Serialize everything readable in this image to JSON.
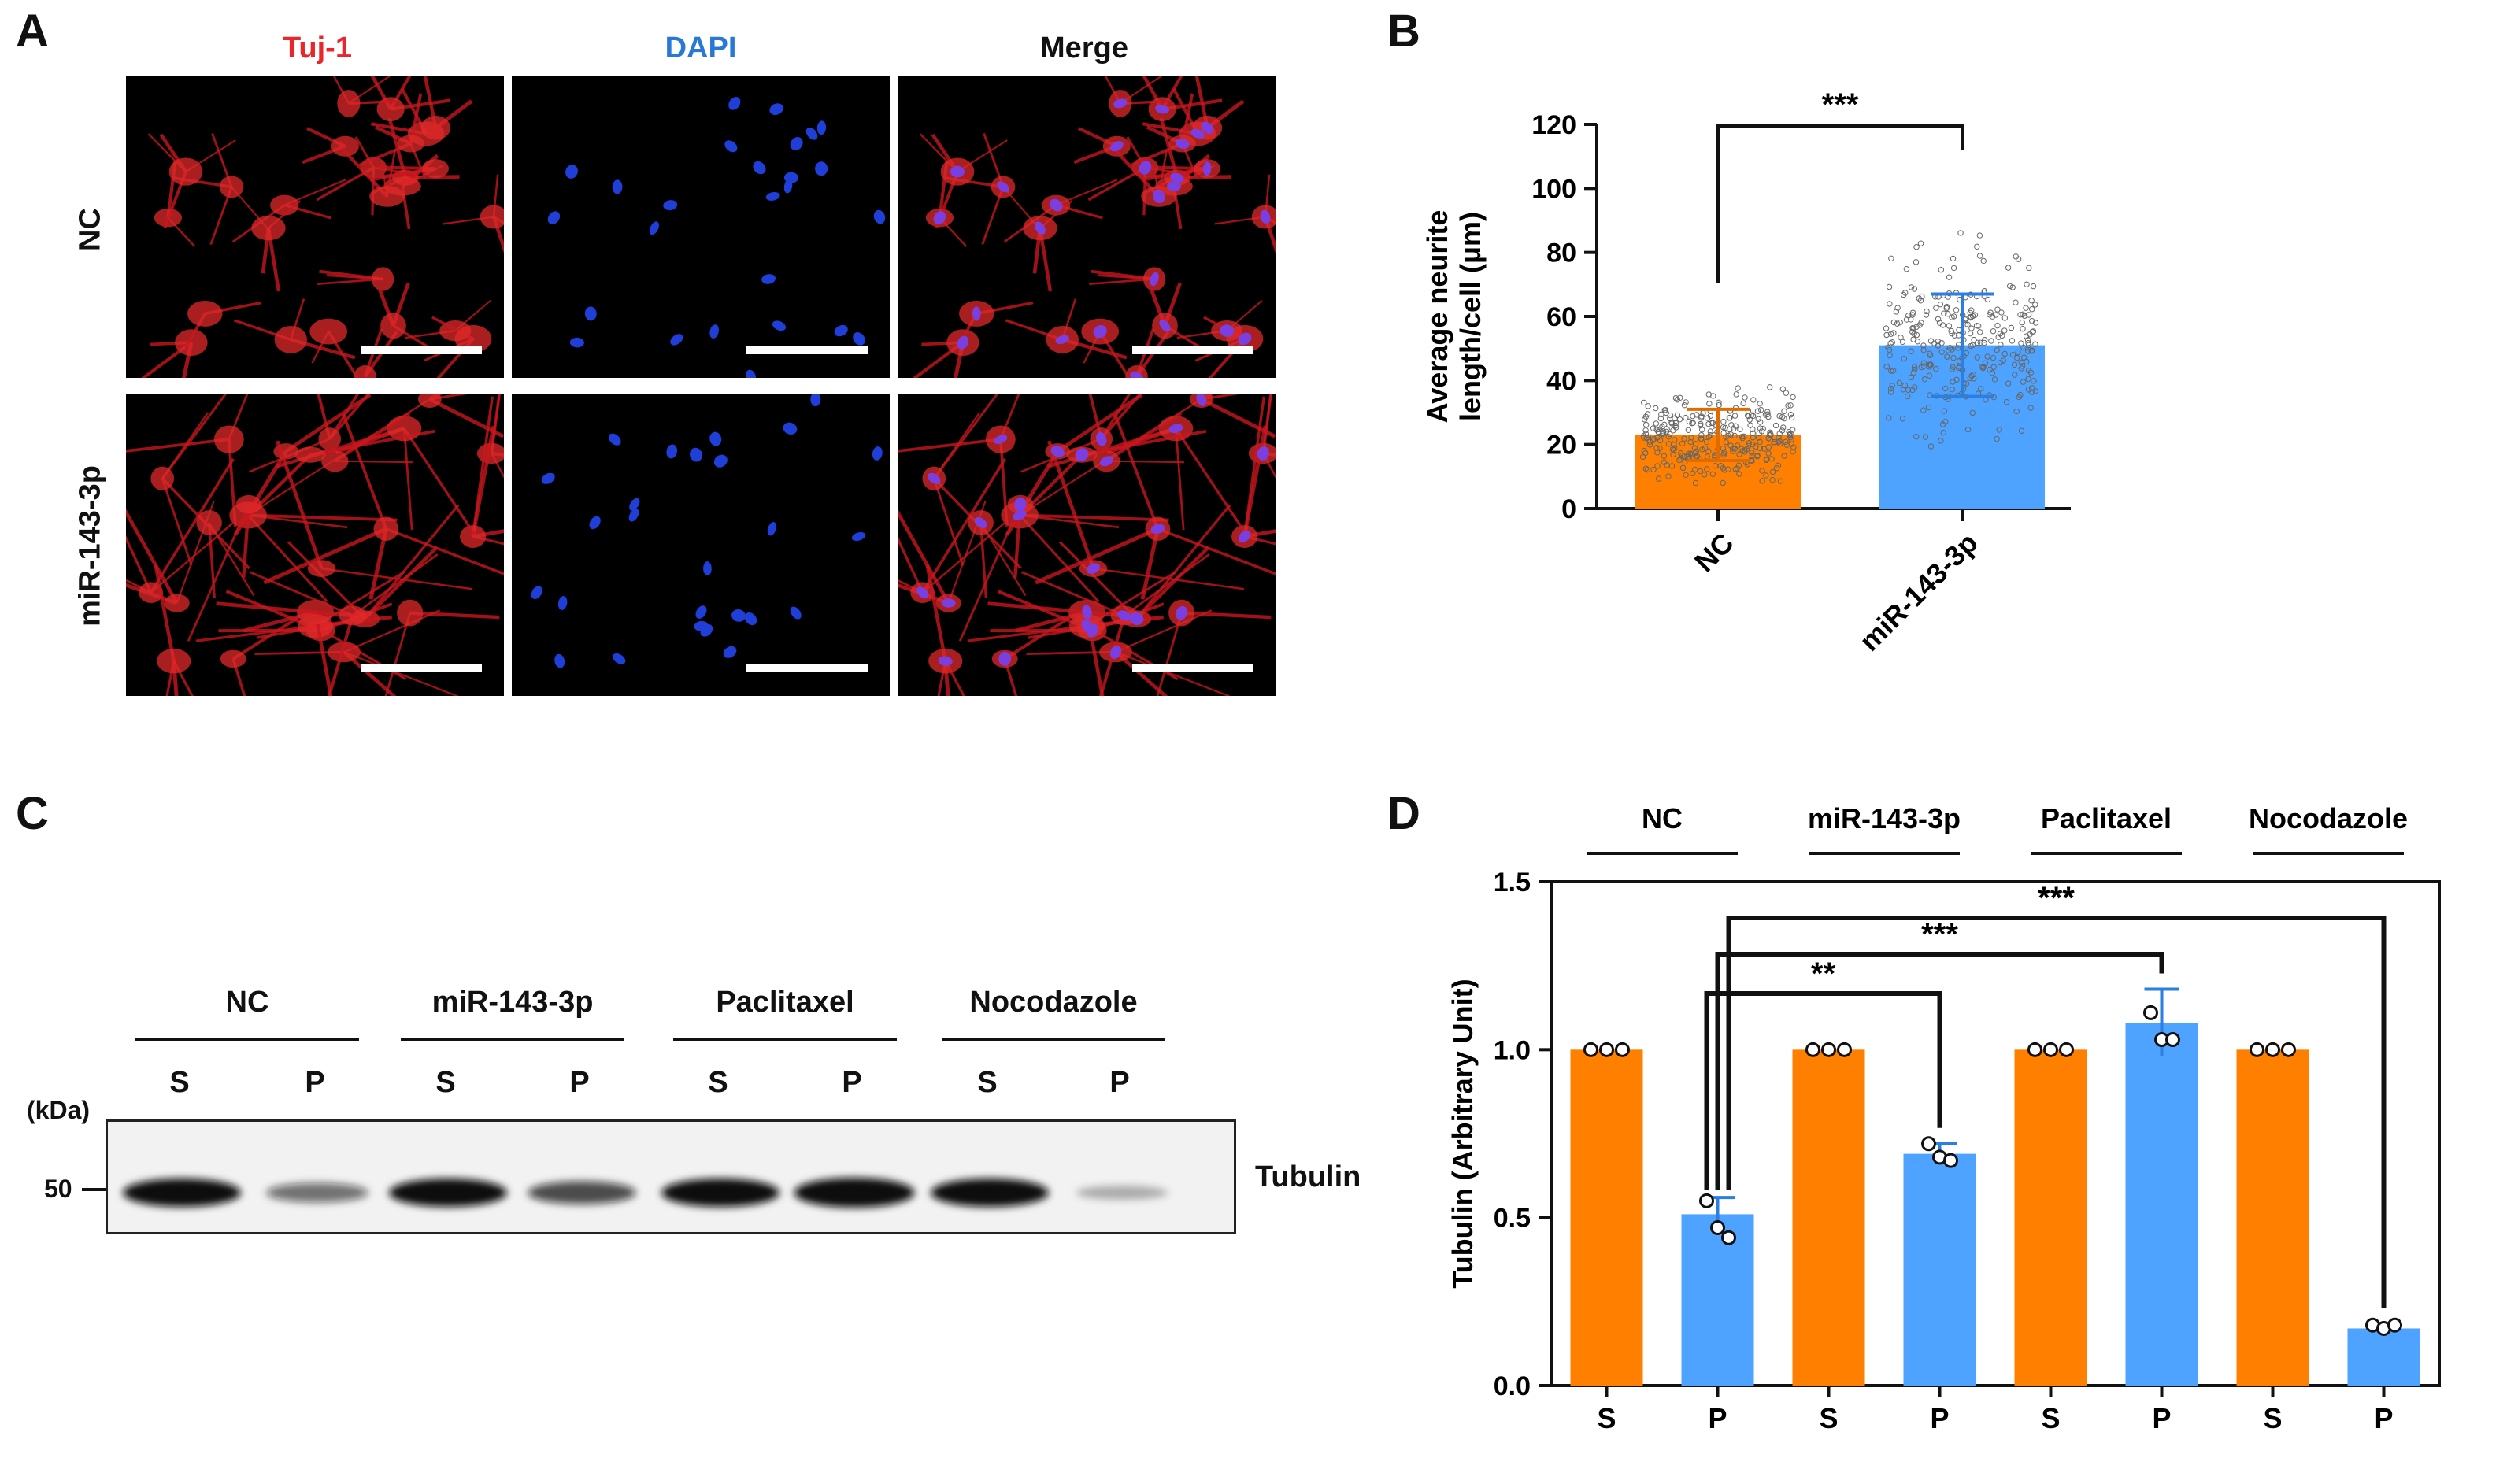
{
  "panels": {
    "a": "A",
    "b": "B",
    "c": "C",
    "d": "D"
  },
  "panel_a": {
    "columns": [
      {
        "label": "Tuj-1",
        "color": "#e8262b"
      },
      {
        "label": "DAPI",
        "color": "#2878d6"
      },
      {
        "label": "Merge",
        "color": "#111111"
      }
    ],
    "rows": [
      "NC",
      "miR-143-3p"
    ]
  },
  "panel_c": {
    "groups": [
      "NC",
      "miR-143-3p",
      "Paclitaxel",
      "Nocodazole"
    ],
    "lanes": [
      "S",
      "P",
      "S",
      "P",
      "S",
      "P",
      "S",
      "P"
    ],
    "unit": "(kDa)",
    "marker": "50",
    "band_label": "Tubulin",
    "band_intensity": [
      1.0,
      0.5,
      1.0,
      0.69,
      1.0,
      1.08,
      1.0,
      0.17
    ]
  },
  "chart_data": [
    {
      "id": "B",
      "type": "bar",
      "categories": [
        "NC",
        "miR-143-3p"
      ],
      "values": [
        23,
        51
      ],
      "error": [
        8,
        16
      ],
      "ylabel_line1": "Average neurite",
      "ylabel_line2": "length/cell (μm)",
      "ylim": [
        0,
        120
      ],
      "yticks": [
        "0",
        "20",
        "40",
        "60",
        "80",
        "100",
        "120"
      ],
      "colors": [
        "#ff8000",
        "#4da3ff"
      ],
      "significance": [
        {
          "between": [
            "NC",
            "miR-143-3p"
          ],
          "label": "***"
        }
      ],
      "points_per_group": 300
    },
    {
      "id": "D",
      "type": "bar",
      "groups": [
        "NC",
        "miR-143-3p",
        "Paclitaxel",
        "Nocodazole"
      ],
      "categories": [
        "S",
        "P",
        "S",
        "P",
        "S",
        "P",
        "S",
        "P"
      ],
      "values": [
        1.0,
        0.51,
        1.0,
        0.69,
        1.0,
        1.08,
        1.0,
        0.17
      ],
      "error": [
        0,
        0.05,
        0,
        0.03,
        0,
        0.1,
        0,
        0.015
      ],
      "points": [
        [
          1.0,
          1.0,
          1.0
        ],
        [
          0.55,
          0.47,
          0.44
        ],
        [
          1.0,
          1.0,
          1.0
        ],
        [
          0.72,
          0.68,
          0.67
        ],
        [
          1.0,
          1.0,
          1.0
        ],
        [
          1.11,
          1.03,
          1.03
        ],
        [
          1.0,
          1.0,
          1.0
        ],
        [
          0.18,
          0.17,
          0.18
        ]
      ],
      "ylabel": "Tubulin (Arbitrary Unit)",
      "ylim": [
        0,
        1.5
      ],
      "yticks": [
        "0.0",
        "0.5",
        "1.0",
        "1.5"
      ],
      "colors": {
        "S": "#ff8000",
        "P": "#4da3ff"
      },
      "significance": [
        {
          "from": 1,
          "to": 3,
          "label": "**"
        },
        {
          "from": 1,
          "to": 5,
          "label": "***"
        },
        {
          "from": 1,
          "to": 7,
          "label": "***"
        }
      ]
    }
  ]
}
